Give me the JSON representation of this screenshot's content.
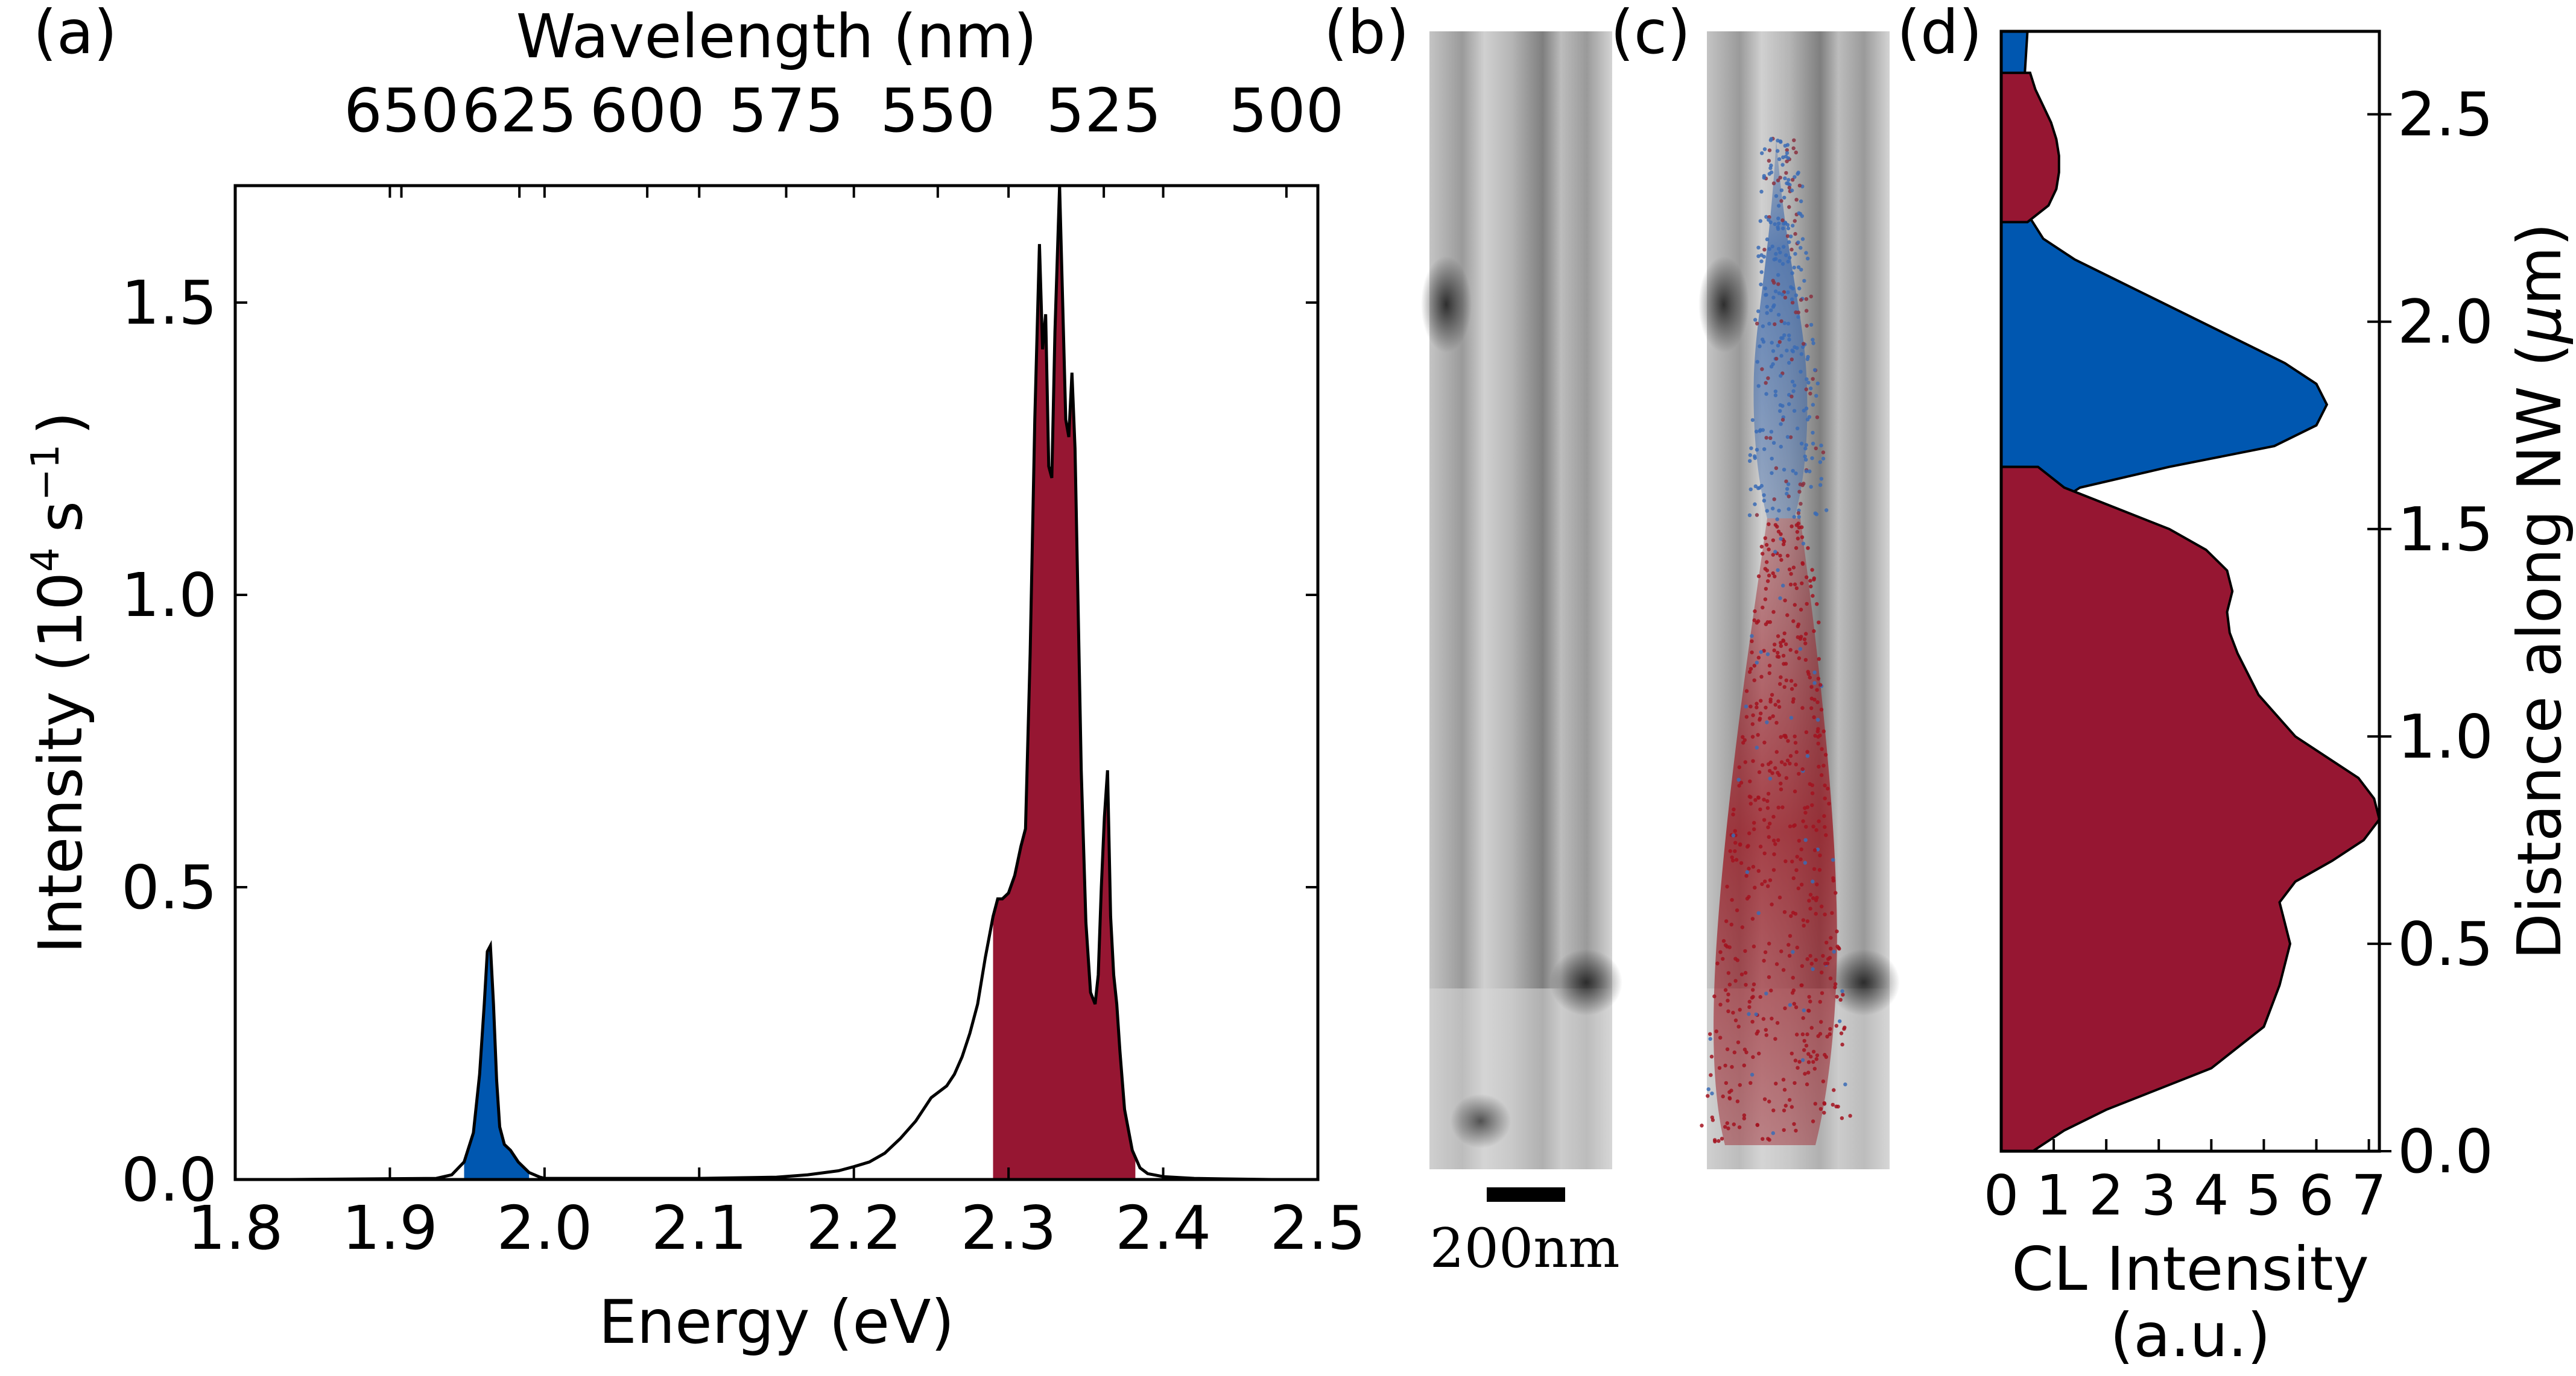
{
  "figure": {
    "panel_labels": [
      "(a)",
      "(b)",
      "(c)",
      "(d)"
    ],
    "scale_bar": {
      "label": "200nm"
    }
  },
  "chart_data": [
    {
      "panel": "(a)",
      "type": "area",
      "xlabel": "Energy (eV)",
      "ylabel": "Intensity (10",
      "ylabel_sup": "4",
      "ylabel_unit": "s",
      "ylabel_unit_sup": "−1",
      "ylabel_close": ")",
      "xlim": [
        1.8,
        2.5
      ],
      "ylim": [
        0,
        1.7
      ],
      "xticks": [
        1.8,
        1.9,
        2.0,
        2.1,
        2.2,
        2.3,
        2.4,
        2.5
      ],
      "xtick_labels": [
        "1.8",
        "1.9",
        "2.0",
        "2.1",
        "2.2",
        "2.3",
        "2.4",
        "2.5"
      ],
      "yticks": [
        0.0,
        0.5,
        1.0,
        1.5
      ],
      "ytick_labels": [
        "0.0",
        "0.5",
        "1.0",
        "1.5"
      ],
      "top_axis": {
        "label": "Wavelength (nm)",
        "tick_labels": [
          "650",
          "625",
          "600",
          "575",
          "550",
          "525",
          "500"
        ],
        "tick_values_nm": [
          650,
          625,
          600,
          575,
          550,
          525,
          500
        ]
      },
      "colors": {
        "blue": "#0057b0",
        "red": "#961632",
        "line": "#000000"
      },
      "series": [
        {
          "x": [
            1.835,
            1.93,
            1.94,
            1.948,
            1.954,
            1.958,
            1.961,
            1.963,
            1.965,
            1.967,
            1.969,
            1.971,
            1.974,
            1.978,
            1.983,
            1.99,
            1.997,
            2.0,
            2.05,
            2.1,
            2.15,
            2.17,
            2.19,
            2.2,
            2.21,
            2.22,
            2.23,
            2.24,
            2.25,
            2.26,
            2.265,
            2.27,
            2.275,
            2.28,
            2.285,
            2.29,
            2.293,
            2.296,
            2.3,
            2.304,
            2.308,
            2.311,
            2.314,
            2.317,
            2.32,
            2.322,
            2.324,
            2.326,
            2.328,
            2.33,
            2.333,
            2.335,
            2.337,
            2.339,
            2.341,
            2.343,
            2.345,
            2.347,
            2.35,
            2.353,
            2.356,
            2.358,
            2.36,
            2.362,
            2.364,
            2.366,
            2.368,
            2.37,
            2.372,
            2.375,
            2.38,
            2.385,
            2.39,
            2.4,
            2.42,
            2.44,
            2.47
          ],
          "y": [
            0.0,
            0.002,
            0.008,
            0.03,
            0.08,
            0.18,
            0.3,
            0.39,
            0.4,
            0.3,
            0.17,
            0.09,
            0.06,
            0.05,
            0.03,
            0.012,
            0.004,
            0.002,
            0.002,
            0.002,
            0.004,
            0.008,
            0.015,
            0.022,
            0.03,
            0.045,
            0.07,
            0.1,
            0.14,
            0.16,
            0.18,
            0.21,
            0.25,
            0.3,
            0.38,
            0.45,
            0.48,
            0.48,
            0.49,
            0.52,
            0.57,
            0.6,
            0.9,
            1.3,
            1.6,
            1.42,
            1.48,
            1.22,
            1.2,
            1.45,
            1.7,
            1.5,
            1.3,
            1.27,
            1.38,
            1.25,
            0.98,
            0.7,
            0.44,
            0.32,
            0.3,
            0.35,
            0.5,
            0.62,
            0.7,
            0.45,
            0.35,
            0.3,
            0.22,
            0.12,
            0.05,
            0.02,
            0.01,
            0.005,
            0.002,
            0.001,
            0.0
          ]
        }
      ],
      "fills": [
        {
          "color": "#0057b0",
          "x_range": [
            1.948,
            1.99
          ]
        },
        {
          "color": "#961632",
          "x_range": [
            2.29,
            2.382
          ]
        }
      ]
    },
    {
      "panel": "(d)",
      "type": "area",
      "xlabel": "CL Intensity",
      "xlabel_line2": "(a.u.)",
      "ylabel": "Distance along NW (",
      "ylabel_mu": "μ",
      "ylabel_end": "m)",
      "xlim": [
        0,
        7.2
      ],
      "ylim": [
        0,
        2.7
      ],
      "xticks": [
        0,
        1,
        2,
        3,
        4,
        5,
        6,
        7
      ],
      "xtick_labels": [
        "0",
        "1",
        "2",
        "3",
        "4",
        "5",
        "6",
        "7"
      ],
      "yticks": [
        0.0,
        0.5,
        1.0,
        1.5,
        2.0,
        2.5
      ],
      "ytick_labels": [
        "0.0",
        "0.5",
        "1.0",
        "1.5",
        "2.0",
        "2.5"
      ],
      "colors": {
        "blue": "#0057b0",
        "red": "#961632"
      },
      "series": [
        {
          "color": "#0057b0",
          "y": [
            0,
            0.2,
            0.4,
            0.6,
            0.8,
            1.0,
            1.2,
            1.4,
            1.5,
            1.55,
            1.6,
            1.65,
            1.7,
            1.75,
            1.8,
            1.85,
            1.9,
            1.95,
            2.0,
            2.05,
            2.1,
            2.15,
            2.2,
            2.25,
            2.3,
            2.4,
            2.5,
            2.6,
            2.7
          ],
          "x": [
            0.05,
            0.1,
            0.15,
            0.2,
            0.25,
            0.3,
            0.4,
            0.55,
            0.7,
            0.9,
            1.5,
            3.2,
            5.2,
            6.0,
            6.2,
            6.0,
            5.4,
            4.6,
            3.8,
            3.0,
            2.2,
            1.4,
            0.8,
            0.55,
            0.45,
            0.45,
            0.4,
            0.45,
            0.5
          ]
        },
        {
          "color": "#961632",
          "y": [
            0,
            0.05,
            0.1,
            0.15,
            0.2,
            0.3,
            0.4,
            0.5,
            0.55,
            0.6,
            0.65,
            0.7,
            0.75,
            0.8,
            0.85,
            0.9,
            0.95,
            1.0,
            1.1,
            1.2,
            1.25,
            1.3,
            1.35,
            1.4,
            1.45,
            1.5,
            1.55,
            1.6,
            1.65
          ],
          "x": [
            0.6,
            1.2,
            2.0,
            3.0,
            4.0,
            5.0,
            5.3,
            5.5,
            5.4,
            5.3,
            5.6,
            6.3,
            6.9,
            7.2,
            7.1,
            6.8,
            6.2,
            5.6,
            4.9,
            4.5,
            4.35,
            4.3,
            4.4,
            4.3,
            3.9,
            3.2,
            2.2,
            1.2,
            0.7
          ]
        },
        {
          "color": "#961632",
          "y": [
            2.24,
            2.28,
            2.32,
            2.36,
            2.4,
            2.44,
            2.48,
            2.52,
            2.56,
            2.6
          ],
          "x": [
            0.5,
            0.9,
            1.05,
            1.1,
            1.1,
            1.05,
            0.95,
            0.8,
            0.65,
            0.55
          ]
        }
      ]
    }
  ]
}
